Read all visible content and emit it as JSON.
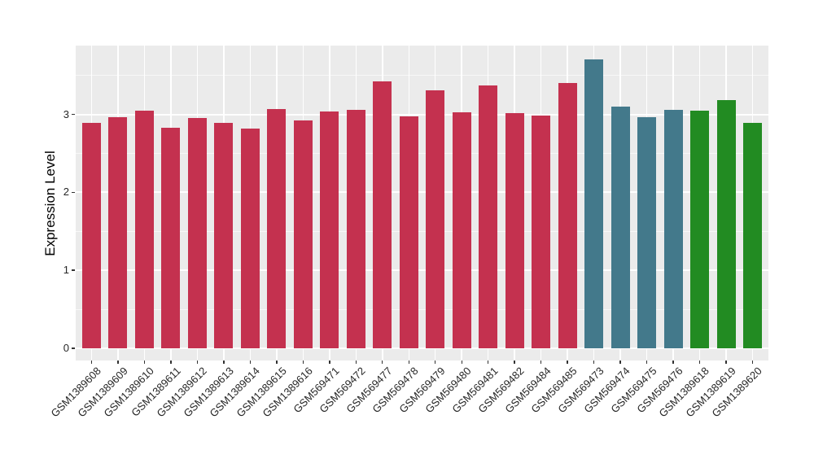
{
  "chart_data": {
    "type": "bar",
    "title": "",
    "xlabel": "",
    "ylabel": "Expression Level",
    "categories": [
      "GSM1389608",
      "GSM1389609",
      "GSM1389610",
      "GSM1389611",
      "GSM1389612",
      "GSM1389613",
      "GSM1389614",
      "GSM1389615",
      "GSM1389616",
      "GSM569471",
      "GSM569472",
      "GSM569477",
      "GSM569478",
      "GSM569479",
      "GSM569480",
      "GSM569481",
      "GSM569482",
      "GSM569484",
      "GSM569485",
      "GSM569473",
      "GSM569474",
      "GSM569475",
      "GSM569476",
      "GSM1389618",
      "GSM1389619",
      "GSM1389620"
    ],
    "values": [
      2.89,
      2.96,
      3.05,
      2.83,
      2.95,
      2.89,
      2.82,
      3.07,
      2.92,
      3.04,
      3.06,
      3.42,
      2.97,
      3.31,
      3.03,
      3.37,
      3.02,
      2.98,
      3.4,
      3.7,
      3.1,
      2.96,
      3.06,
      3.05,
      3.18,
      2.89
    ],
    "bar_groups": [
      "red",
      "red",
      "red",
      "red",
      "red",
      "red",
      "red",
      "red",
      "red",
      "red",
      "red",
      "red",
      "red",
      "red",
      "red",
      "red",
      "red",
      "red",
      "red",
      "teal",
      "teal",
      "teal",
      "teal",
      "green",
      "green",
      "green"
    ],
    "palette": {
      "red": "#C4314F",
      "teal": "#43798B",
      "green": "#228B22"
    },
    "yticks": [
      0,
      1,
      2,
      3
    ],
    "yticks_minor": [
      0.5,
      1.5,
      2.5,
      3.5
    ],
    "ylim": [
      -0.16,
      3.88
    ],
    "legend_position": "none",
    "grid": "white-on-gray",
    "panel_background": "#EBEBEB",
    "gridline_color": "#FFFFFF",
    "axis_text_color": "#262626",
    "tick_mark_color": "#333333"
  }
}
